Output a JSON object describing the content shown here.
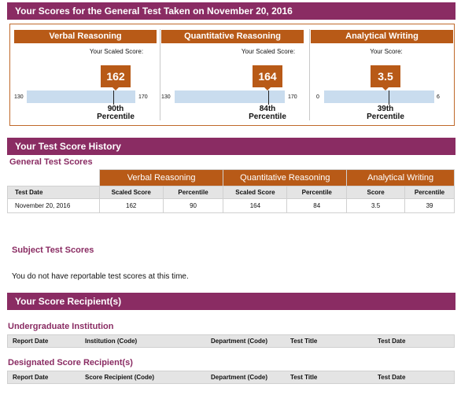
{
  "banner": {
    "title": "Your Scores for the General Test Taken on November 20, 2016"
  },
  "sections": [
    {
      "name": "Verbal Reasoning",
      "scaled_label": "Your Scaled Score:",
      "score": "162",
      "min_label": "130",
      "max_label": "170",
      "percentile_line1": "90th",
      "percentile_line2": "Percentile",
      "scale_min": 130,
      "scale_max": 170,
      "value": 162
    },
    {
      "name": "Quantitative Reasoning",
      "scaled_label": "Your Scaled Score:",
      "score": "164",
      "min_label": "130",
      "max_label": "170",
      "percentile_line1": "84th",
      "percentile_line2": "Percentile",
      "scale_min": 130,
      "scale_max": 170,
      "value": 164
    },
    {
      "name": "Analytical Writing",
      "scaled_label": "Your Score:",
      "score": "3.5",
      "min_label": "0",
      "max_label": "6",
      "percentile_line1": "39th",
      "percentile_line2": "Percentile",
      "scale_min": 0,
      "scale_max": 6,
      "value": 3.5
    }
  ],
  "history": {
    "title": "Your Test Score History",
    "general_title": "General Test Scores",
    "groups": [
      "Verbal Reasoning",
      "Quantitative Reasoning",
      "Analytical Writing"
    ],
    "headers": [
      "Test Date",
      "Scaled Score",
      "Percentile",
      "Scaled Score",
      "Percentile",
      "Score",
      "Percentile"
    ],
    "rows": [
      [
        "November 20, 2016",
        "162",
        "90",
        "164",
        "84",
        "3.5",
        "39"
      ]
    ],
    "subject_title": "Subject Test Scores",
    "subject_message": "You do not have reportable test scores at this time."
  },
  "recipients": {
    "title": "Your Score Recipient(s)",
    "undergrad_title": "Undergraduate Institution",
    "undergrad_headers": [
      "Report Date",
      "Institution (Code)",
      "Department (Code)",
      "Test Title",
      "Test Date"
    ],
    "designated_title": "Designated Score Recipient(s)",
    "designated_headers": [
      "Report Date",
      "Score Recipient (Code)",
      "Department (Code)",
      "Test Title",
      "Test Date"
    ]
  },
  "colors": {
    "band": "#8a2c63",
    "accent": "#b85a17",
    "scale_bar": "#c9dcee",
    "header_bg": "#e4e4e4"
  }
}
